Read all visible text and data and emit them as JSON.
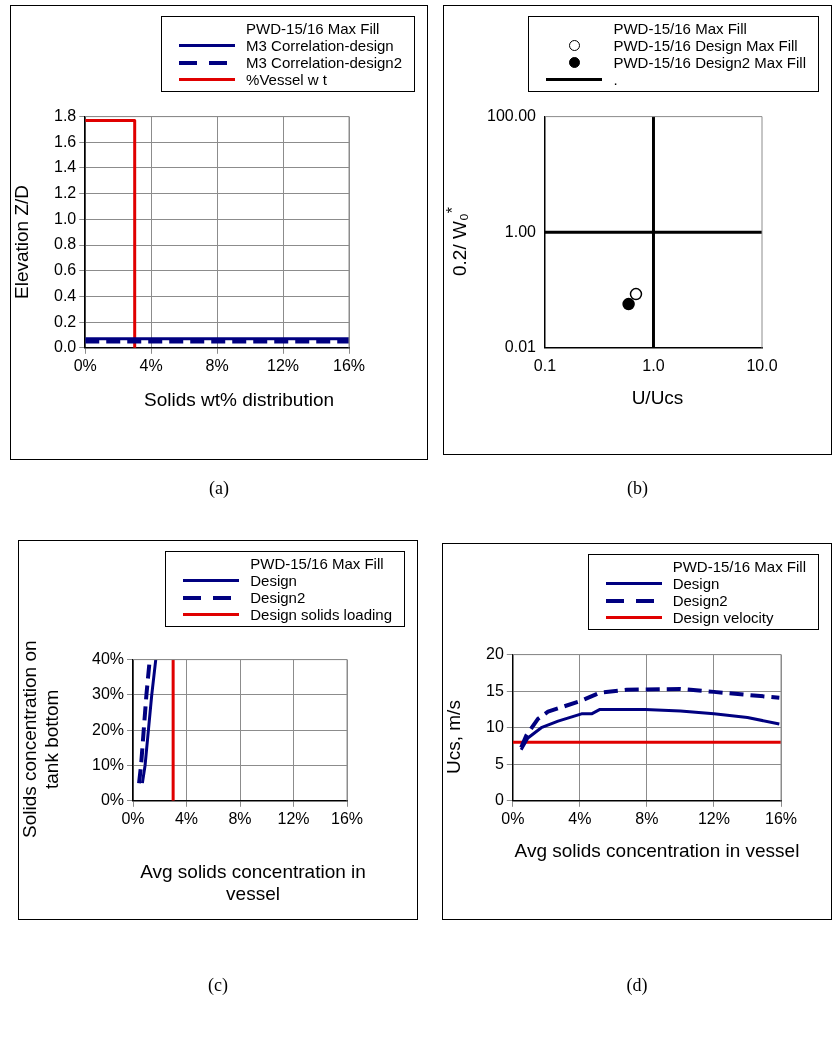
{
  "chart_data": [
    {
      "type": "line",
      "legend_title": "PWD-15/16 Max Fill",
      "xlabel": "Solids wt% distribution",
      "ylabel": "Elevation Z/D",
      "annotations": [
        "(a)"
      ],
      "legend": "top",
      "grid": true,
      "marker": "none",
      "xlim": [
        0,
        16
      ],
      "xticks": [
        {
          "value": 0,
          "label": "0%"
        },
        {
          "value": 4,
          "label": "4%"
        },
        {
          "value": 8,
          "label": "8%"
        },
        {
          "value": 12,
          "label": "12%"
        },
        {
          "value": 16,
          "label": "16%"
        }
      ],
      "ylim": [
        0,
        1.8
      ],
      "yticks": [
        {
          "value": 0,
          "label": "0.0"
        },
        0.2,
        0.4,
        0.6,
        0.8,
        {
          "value": 1,
          "label": "1.0"
        },
        1.2,
        1.4,
        1.6,
        1.8
      ],
      "series": [
        {
          "name": "M3 Correlation-design",
          "color": "#000080",
          "line_style": "solid",
          "x": [
            0,
            16
          ],
          "values": [
            0.07,
            0.07
          ]
        },
        {
          "name": "M3 Correlation-design2",
          "color": "#000080",
          "line_style": "dashed",
          "x": [
            0,
            16
          ],
          "values": [
            0.05,
            0.05
          ]
        },
        {
          "name": "%Vessel w t",
          "color": "#e00000",
          "line_style": "solid",
          "x": [
            0,
            3,
            3
          ],
          "values": [
            1.77,
            1.77,
            0
          ]
        }
      ]
    },
    {
      "type": "scatter",
      "legend_title": "PWD-15/16 Max Fill",
      "xlabel": "U/Ucs",
      "ylabel": "0.2/ W₀$^{*}$",
      "annotations": [
        "(b)"
      ],
      "legend": "top",
      "marker": "circle",
      "log": "xy",
      "xlim": [
        0.1,
        10
      ],
      "xticks": [
        0.1,
        {
          "value": 1,
          "label": "1.0"
        },
        {
          "value": 10,
          "label": "10.0"
        }
      ],
      "ylim": [
        0.01,
        100
      ],
      "yticks": [
        0.01,
        {
          "value": 1,
          "label": "1.00"
        },
        {
          "value": 100,
          "label": "100.00"
        }
      ],
      "series": [
        {
          "name": "PWD-15/16 Design Max Fill",
          "color": "#ffffff",
          "x": [
            0.69
          ],
          "values": [
            0.085
          ]
        },
        {
          "name": "PWD-15/16 Design2 Max Fill",
          "color": "#000000",
          "x": [
            0.59
          ],
          "values": [
            0.057
          ]
        },
        {
          "name": ".",
          "type": "line",
          "marker": "none",
          "color": "#000000",
          "x": [
            1,
            1,
            1,
            0.1,
            10
          ],
          "values": [
            0.01,
            100,
            1,
            1,
            1
          ]
        }
      ]
    },
    {
      "type": "line",
      "legend_title": "PWD-15/16 Max Fill",
      "xlabel": "Avg solids concentration in vessel",
      "ylabel": "Solids concentration on tank bottom",
      "annotations": [
        "(c)"
      ],
      "legend": "top",
      "grid": true,
      "marker": "none",
      "xlim": [
        0,
        16
      ],
      "xticks": [
        {
          "value": 0,
          "label": "0%"
        },
        {
          "value": 4,
          "label": "4%"
        },
        {
          "value": 8,
          "label": "8%"
        },
        {
          "value": 12,
          "label": "12%"
        },
        {
          "value": 16,
          "label": "16%"
        }
      ],
      "ylim": [
        0,
        40
      ],
      "yticks": [
        {
          "value": 0,
          "label": "0%"
        },
        {
          "value": 10,
          "label": "10%"
        },
        {
          "value": 20,
          "label": "20%"
        },
        {
          "value": 30,
          "label": "30%"
        },
        {
          "value": 40,
          "label": "40%"
        }
      ],
      "series": [
        {
          "name": "Design",
          "color": "#000080",
          "line_style": "solid",
          "x": [
            0.7,
            0.9,
            1.15,
            1.4,
            1.7
          ],
          "values": [
            5,
            10,
            20,
            30,
            40
          ]
        },
        {
          "name": "Design2",
          "color": "#000080",
          "line_style": "dashed",
          "x": [
            0.45,
            0.6,
            0.8,
            1.0,
            1.25
          ],
          "values": [
            5,
            10,
            20,
            30,
            40
          ]
        },
        {
          "name": "Design solids loading",
          "color": "#e00000",
          "line_style": "solid",
          "x": [
            3,
            3
          ],
          "values": [
            0,
            40
          ]
        }
      ]
    },
    {
      "type": "line",
      "legend_title": "PWD-15/16 Max Fill",
      "xlabel": "Avg solids concentration in vessel",
      "ylabel": "Ucs, m/s",
      "annotations": [
        "(d)"
      ],
      "legend": "top",
      "grid": true,
      "marker": "none",
      "xlim": [
        0,
        16
      ],
      "xticks": [
        {
          "value": 0,
          "label": "0%"
        },
        {
          "value": 4,
          "label": "4%"
        },
        {
          "value": 8,
          "label": "8%"
        },
        {
          "value": 12,
          "label": "12%"
        },
        {
          "value": 16,
          "label": "16%"
        }
      ],
      "ylim": [
        0,
        20
      ],
      "yticks": [
        0,
        5,
        10,
        15,
        20
      ],
      "series": [
        {
          "name": "Design",
          "color": "#000080",
          "line_style": "solid",
          "x": [
            0.5,
            0.9,
            1.7,
            2.7,
            4.1,
            4.7,
            5.2,
            7.9,
            10,
            12,
            14,
            15.9
          ],
          "values": [
            7.0,
            8.6,
            10.0,
            10.9,
            11.9,
            11.9,
            12.5,
            12.5,
            12.3,
            11.9,
            11.4,
            10.5
          ]
        },
        {
          "name": "Design2",
          "color": "#000080",
          "line_style": "dashed",
          "x": [
            0.5,
            0.8,
            1.5,
            2.1,
            4.1,
            5.2,
            6.8,
            10,
            12,
            15.9
          ],
          "values": [
            7.3,
            8.9,
            11.2,
            12.2,
            13.7,
            14.8,
            15.2,
            15.3,
            14.9,
            14.1
          ]
        },
        {
          "name": "Design velocity",
          "color": "#e00000",
          "line_style": "solid",
          "x": [
            0,
            16
          ],
          "values": [
            8,
            8
          ]
        }
      ]
    }
  ]
}
